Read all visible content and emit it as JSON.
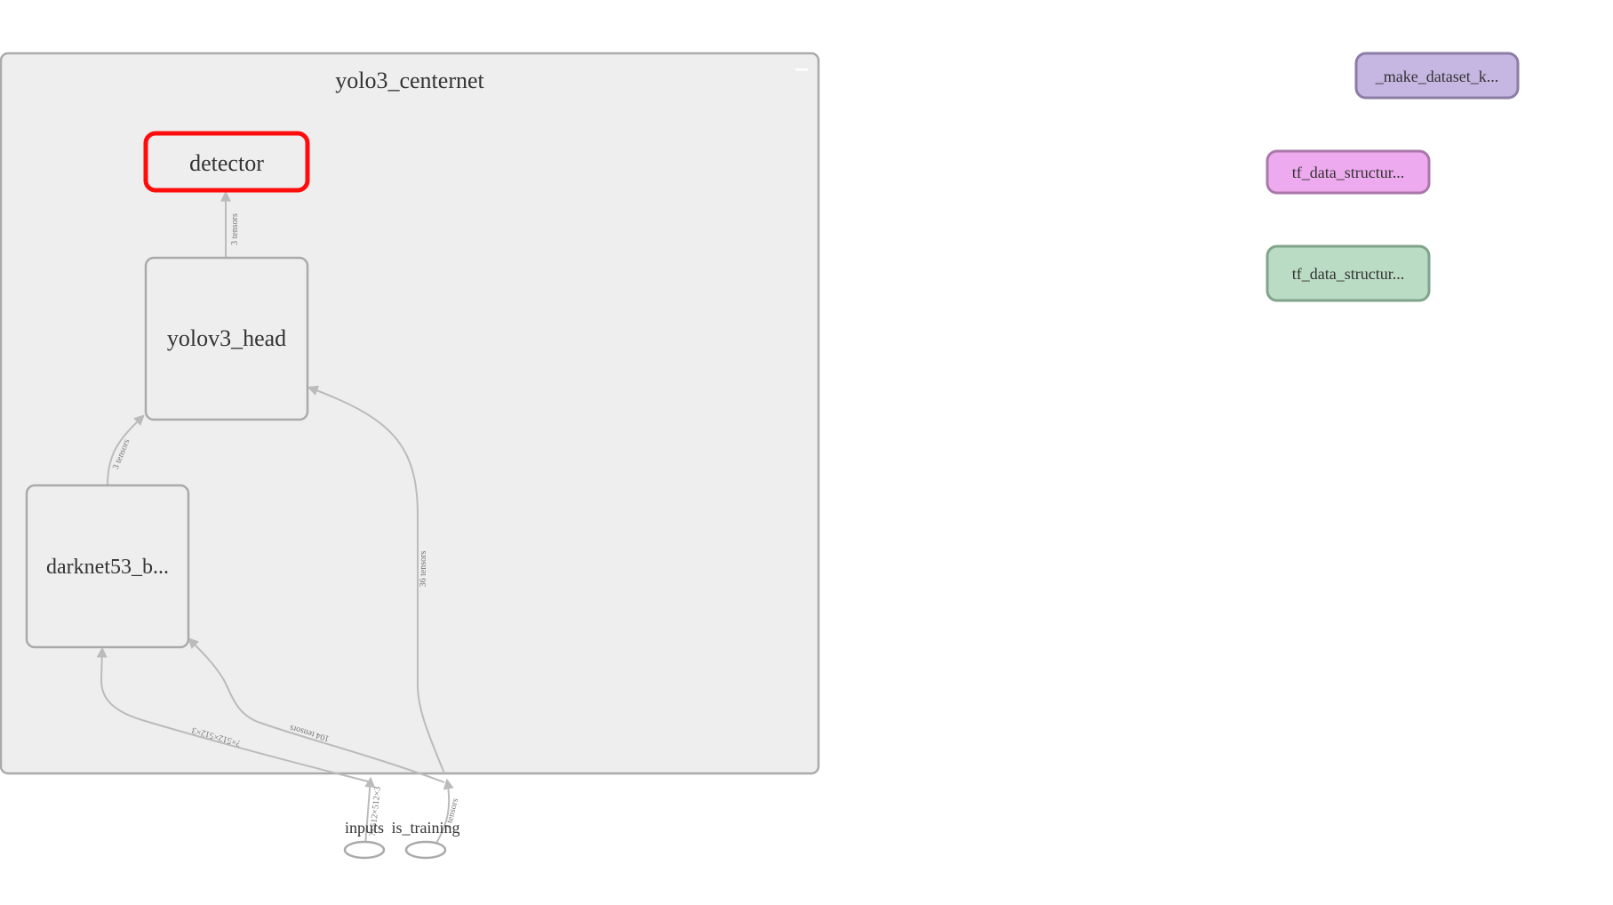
{
  "graph": {
    "group": {
      "title": "yolo3_centernet"
    },
    "nodes": {
      "detector": "detector",
      "head": "yolov3_head",
      "backbone": "darknet53_b...",
      "inputs": "inputs",
      "is_training": "is_training",
      "make_dataset": "_make_dataset_k...",
      "tf_data_1": "tf_data_structur...",
      "tf_data_2": "tf_data_structur..."
    },
    "edges": {
      "head_to_detector": "3 tensors",
      "backbone_to_head": "3 tensors",
      "training_to_head": "36 tensors",
      "inputs_to_backbone": "?×512×512×3",
      "training_to_backbone": "104 tensors",
      "inputs_in": "?×512×512×3",
      "training_in": "? tensors"
    },
    "colors": {
      "group_fill": "#eeeeee",
      "group_stroke": "#aaaaaa",
      "selected_stroke": "#ff0d0d",
      "edge": "#bbbbbb",
      "make_dataset_fill": "#c6b6e2",
      "make_dataset_stroke": "#8c7da6",
      "tf_data_1_fill": "#eeaaee",
      "tf_data_1_stroke": "#aa77aa",
      "tf_data_2_fill": "#bbdcc4",
      "tf_data_2_stroke": "#80a48a"
    }
  }
}
